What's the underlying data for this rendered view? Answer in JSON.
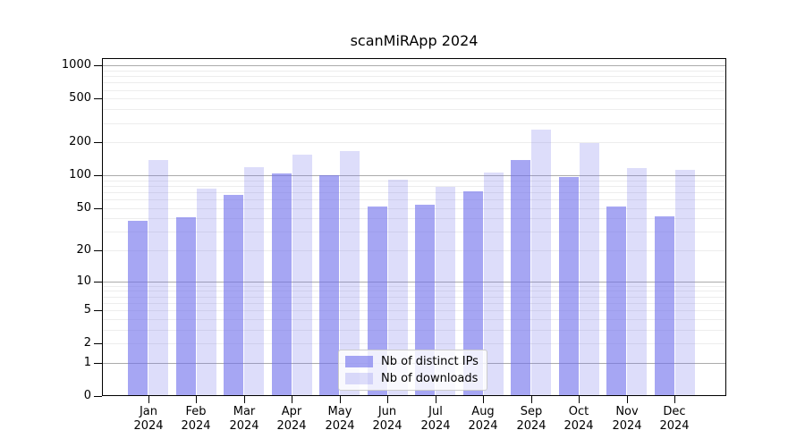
{
  "chart_data": {
    "type": "bar",
    "title": "scanMiRApp 2024",
    "categories": [
      "Jan 2024",
      "Feb 2024",
      "Mar 2024",
      "Apr 2024",
      "May 2024",
      "Jun 2024",
      "Jul 2024",
      "Aug 2024",
      "Sep 2024",
      "Oct 2024",
      "Nov 2024",
      "Dec 2024"
    ],
    "series": [
      {
        "name": "Nb of distinct IPs",
        "color": "#a9a9f3",
        "fill": "rgba(112,112,235,0.62)",
        "values": [
          38,
          41,
          66,
          104,
          100,
          52,
          54,
          72,
          138,
          97,
          52,
          42
        ]
      },
      {
        "name": "Nb of downloads",
        "color": "#dadaf9",
        "fill": "rgba(112,112,235,0.24)",
        "values": [
          139,
          76,
          118,
          155,
          167,
          91,
          78,
          106,
          264,
          197,
          116,
          112
        ]
      }
    ],
    "yscale": "log1p",
    "ylim": [
      0,
      1170
    ],
    "yticks": [
      0,
      1,
      2,
      5,
      10,
      20,
      50,
      100,
      200,
      500,
      1000
    ],
    "major_gridlines": [
      1,
      10,
      100,
      1000
    ],
    "minor_gridlines": [
      2,
      3,
      4,
      5,
      6,
      7,
      8,
      9,
      20,
      30,
      40,
      50,
      60,
      70,
      80,
      90,
      200,
      300,
      400,
      500,
      600,
      700,
      800,
      900
    ],
    "grid": "horizontal",
    "legend_position": "lower center",
    "axis_color": "#000000",
    "major_grid_color": "#ababab",
    "minor_grid_color": "#ededed"
  }
}
